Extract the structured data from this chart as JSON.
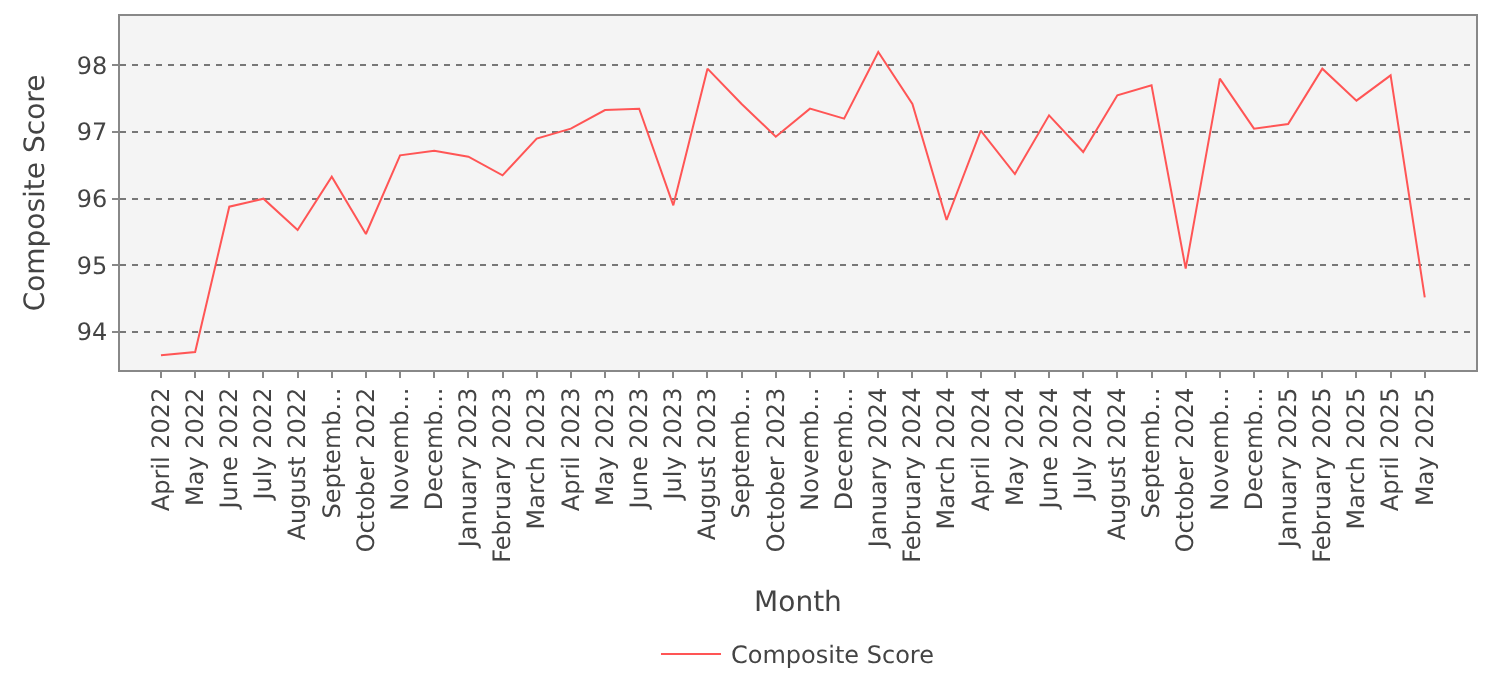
{
  "chart_data": {
    "type": "line",
    "xlabel": "Month",
    "ylabel": "Composite Score",
    "categories": [
      "April 2022",
      "May 2022",
      "June 2022",
      "July 2022",
      "August 2022",
      "Septemb...",
      "October 2022",
      "Novemb...",
      "Decemb...",
      "January 2023",
      "February 2023",
      "March 2023",
      "April 2023",
      "May 2023",
      "June 2023",
      "July 2023",
      "August 2023",
      "Septemb...",
      "October 2023",
      "Novemb...",
      "Decemb...",
      "January 2024",
      "February 2024",
      "March 2024",
      "April 2024",
      "May 2024",
      "June 2024",
      "July 2024",
      "August 2024",
      "Septemb...",
      "October 2024",
      "Novemb...",
      "Decemb...",
      "January 2025",
      "February 2025",
      "March 2025",
      "April 2025",
      "May 2025"
    ],
    "series": [
      {
        "name": "Composite Score",
        "color": "#ff5555",
        "values": [
          93.65,
          93.7,
          95.88,
          96.0,
          95.53,
          96.33,
          95.47,
          96.65,
          96.72,
          96.63,
          96.35,
          96.9,
          97.05,
          97.33,
          97.35,
          95.9,
          97.95,
          97.42,
          96.93,
          97.35,
          97.2,
          98.2,
          97.42,
          95.68,
          97.02,
          96.37,
          97.25,
          96.7,
          97.55,
          97.7,
          94.95,
          97.8,
          97.05,
          97.12,
          97.95,
          97.47,
          97.85,
          94.52
        ]
      }
    ],
    "ylim": [
      93.43,
      98.74
    ],
    "yticks": [
      94,
      95,
      96,
      97,
      98
    ],
    "grid": "y",
    "legend": "bottom",
    "marker": "none",
    "line_style": "solid"
  }
}
